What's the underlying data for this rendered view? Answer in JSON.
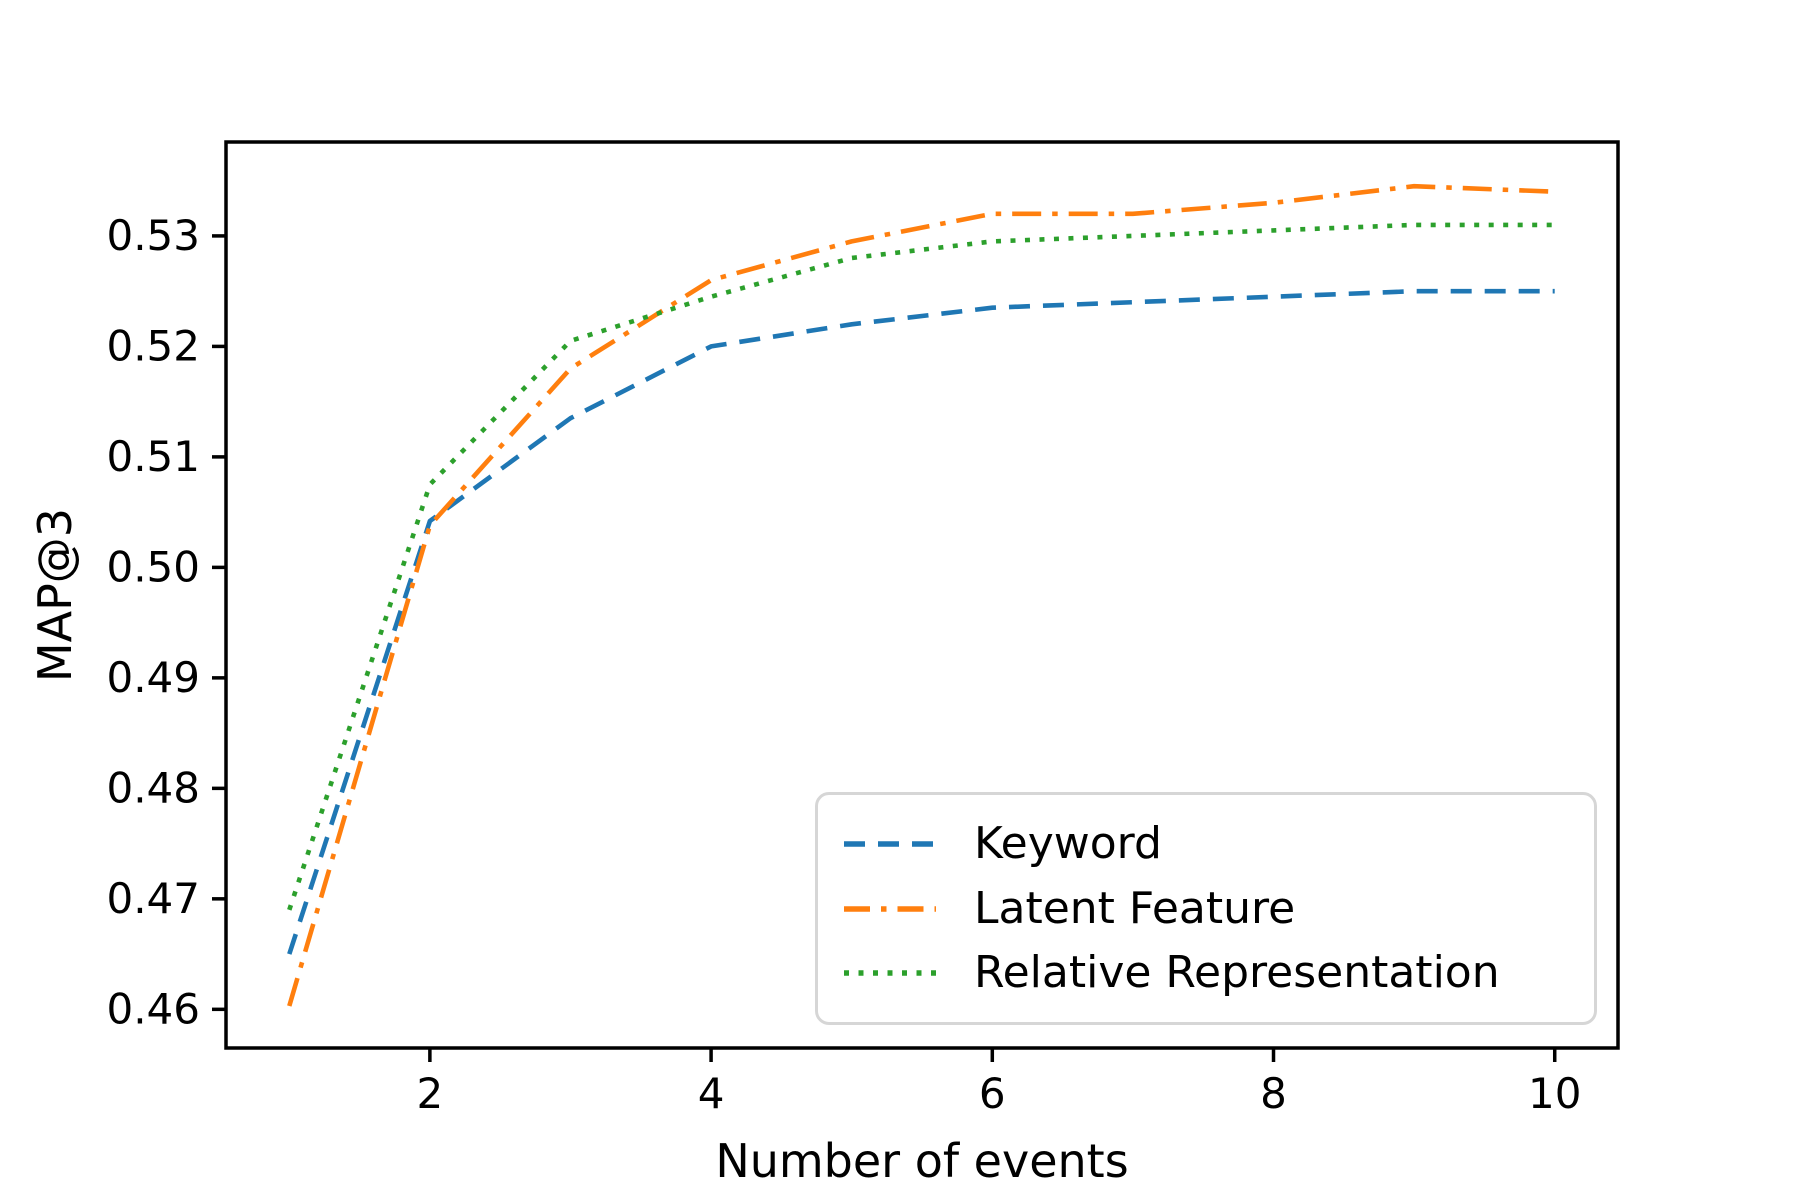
{
  "chart_data": {
    "type": "line",
    "title": "",
    "xlabel": "Number of events",
    "ylabel": "MAP@3",
    "x": [
      1,
      2,
      3,
      4,
      5,
      6,
      7,
      8,
      9,
      10
    ],
    "series": [
      {
        "name": "Keyword",
        "color": "#1f77b4",
        "linestyle": "dashed",
        "values": [
          0.465,
          0.5042,
          0.5135,
          0.52,
          0.522,
          0.5235,
          0.524,
          0.5245,
          0.525,
          0.525
        ]
      },
      {
        "name": "Latent Feature",
        "color": "#ff7f0e",
        "linestyle": "dashdot",
        "values": [
          0.4603,
          0.5038,
          0.518,
          0.526,
          0.5295,
          0.532,
          0.532,
          0.533,
          0.5345,
          0.534
        ]
      },
      {
        "name": "Relative Representation",
        "color": "#2ca02c",
        "linestyle": "dotted",
        "values": [
          0.469,
          0.5075,
          0.5205,
          0.5245,
          0.528,
          0.5295,
          0.53,
          0.5305,
          0.531,
          0.531
        ]
      }
    ],
    "xticks": [
      "2",
      "4",
      "6",
      "8",
      "10"
    ],
    "xtick_values": [
      2,
      4,
      6,
      8,
      10
    ],
    "yticks": [
      "0.46",
      "0.47",
      "0.48",
      "0.49",
      "0.50",
      "0.51",
      "0.52",
      "0.53"
    ],
    "ytick_values": [
      0.46,
      0.47,
      0.48,
      0.49,
      0.5,
      0.51,
      0.52,
      0.53
    ],
    "xlim": [
      0.55,
      10.45
    ],
    "ylim": [
      0.4565,
      0.5385
    ],
    "grid": false,
    "axis_color": "#000000",
    "legend_position": "lower right"
  }
}
